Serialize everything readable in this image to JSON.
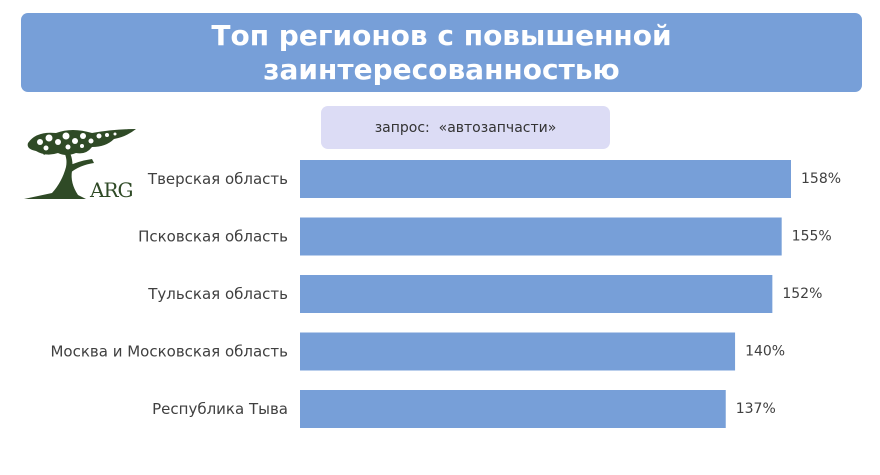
{
  "header": {
    "title": "Топ регионов с повышенной заинтересованностью",
    "query_label": "запрос:  «автозапчасти»"
  },
  "logo": {
    "text": "ARG",
    "icon": "tree-logo-icon",
    "color": "#2f4a26"
  },
  "colors": {
    "banner": "#779fd8",
    "bar": "#779fd8",
    "pill": "#dcdcf5"
  },
  "chart_data": {
    "type": "bar",
    "orientation": "horizontal",
    "categories": [
      "Тверская область",
      "Псковская область",
      "Тульская область",
      "Москва и Московская область",
      "Республика Тыва"
    ],
    "values": [
      158,
      155,
      152,
      140,
      137
    ],
    "value_labels": [
      "158%",
      "155%",
      "152%",
      "140%",
      "137%"
    ],
    "unit": "%",
    "title": "Топ регионов с повышенной заинтересованностью",
    "xlabel": "",
    "ylabel": "",
    "xlim": [
      0,
      158
    ],
    "grid": false,
    "legend": "none"
  }
}
